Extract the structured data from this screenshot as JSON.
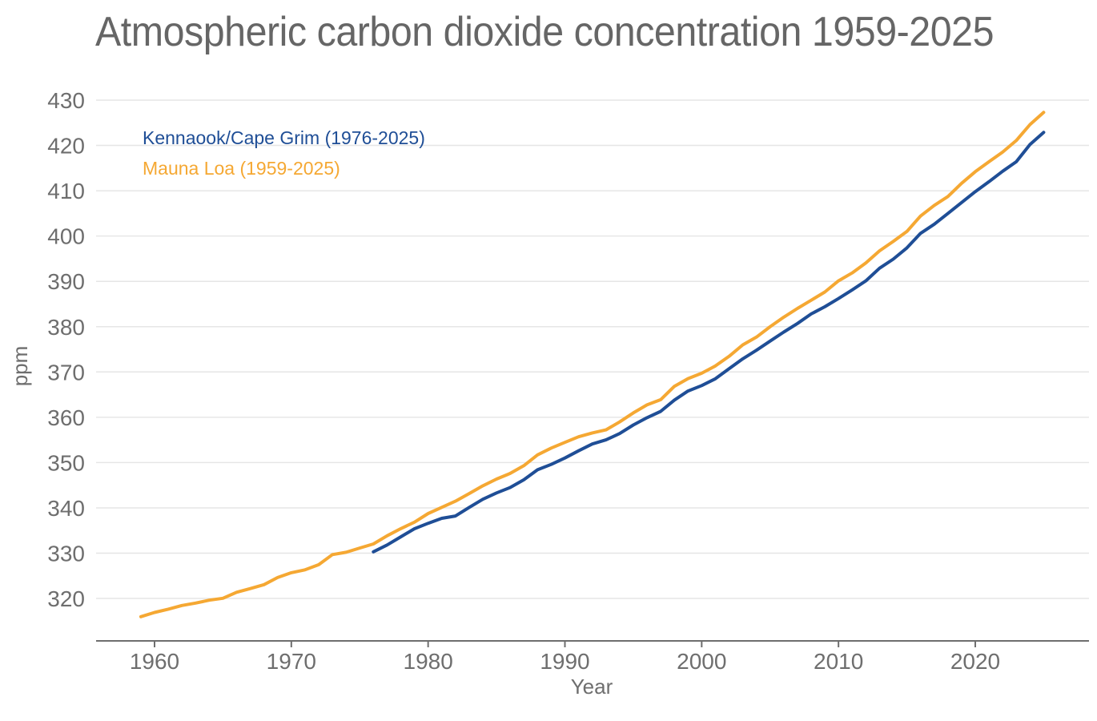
{
  "chart_data": {
    "type": "line",
    "title": "Atmospheric carbon dioxide concentration 1959-2025",
    "xlabel": "Year",
    "ylabel": "ppm",
    "xlim": [
      1956,
      2028
    ],
    "ylim": [
      311.5,
      430
    ],
    "x_ticks": [
      1960,
      1970,
      1980,
      1990,
      2000,
      2010,
      2020
    ],
    "y_ticks": [
      320,
      330,
      340,
      350,
      360,
      370,
      380,
      390,
      400,
      410,
      420,
      430
    ],
    "grid": "horizontal",
    "legend_placement": "top-left",
    "series": [
      {
        "name": "Kennaook/Cape Grim (1976-2025)",
        "color": "#1f4e96",
        "x": [
          1976,
          1977,
          1978,
          1979,
          1980,
          1981,
          1982,
          1983,
          1984,
          1985,
          1986,
          1987,
          1988,
          1989,
          1990,
          1991,
          1992,
          1993,
          1994,
          1995,
          1996,
          1997,
          1998,
          1999,
          2000,
          2001,
          2002,
          2003,
          2004,
          2005,
          2006,
          2007,
          2008,
          2009,
          2010,
          2011,
          2012,
          2013,
          2014,
          2015,
          2016,
          2017,
          2018,
          2019,
          2020,
          2021,
          2022,
          2023,
          2024,
          2025
        ],
        "values": [
          330.3,
          331.8,
          333.6,
          335.4,
          336.6,
          337.7,
          338.2,
          340.1,
          341.9,
          343.3,
          344.5,
          346.2,
          348.4,
          349.6,
          351.0,
          352.6,
          354.1,
          355.0,
          356.4,
          358.3,
          359.9,
          361.3,
          363.8,
          365.8,
          367.0,
          368.5,
          370.7,
          372.9,
          374.8,
          376.8,
          378.8,
          380.7,
          382.8,
          384.4,
          386.2,
          388.1,
          390.1,
          392.9,
          394.9,
          397.4,
          400.6,
          402.6,
          405.0,
          407.4,
          409.8,
          412.0,
          414.3,
          416.4,
          420.2,
          422.9
        ]
      },
      {
        "name": "Mauna Loa (1959-2025)",
        "color": "#f5a833",
        "x": [
          1959,
          1960,
          1961,
          1962,
          1963,
          1964,
          1965,
          1966,
          1967,
          1968,
          1969,
          1970,
          1971,
          1972,
          1973,
          1974,
          1975,
          1976,
          1977,
          1978,
          1979,
          1980,
          1981,
          1982,
          1983,
          1984,
          1985,
          1986,
          1987,
          1988,
          1989,
          1990,
          1991,
          1992,
          1993,
          1994,
          1995,
          1996,
          1997,
          1998,
          1999,
          2000,
          2001,
          2002,
          2003,
          2004,
          2005,
          2006,
          2007,
          2008,
          2009,
          2010,
          2011,
          2012,
          2013,
          2014,
          2015,
          2016,
          2017,
          2018,
          2019,
          2020,
          2021,
          2022,
          2023,
          2024,
          2025
        ],
        "values": [
          315.98,
          316.91,
          317.64,
          318.45,
          318.99,
          319.62,
          320.04,
          321.37,
          322.18,
          323.05,
          324.62,
          325.68,
          326.32,
          327.46,
          329.68,
          330.19,
          331.13,
          332.03,
          333.84,
          335.41,
          336.84,
          338.76,
          340.12,
          341.48,
          343.15,
          344.87,
          346.35,
          347.61,
          349.31,
          351.69,
          353.2,
          354.45,
          355.7,
          356.54,
          357.21,
          358.96,
          360.97,
          362.74,
          363.88,
          366.84,
          368.54,
          369.71,
          371.32,
          373.45,
          375.98,
          377.7,
          379.98,
          382.09,
          384.02,
          385.83,
          387.64,
          390.1,
          391.85,
          394.06,
          396.74,
          398.81,
          401.01,
          404.41,
          406.76,
          408.72,
          411.65,
          414.21,
          416.41,
          418.53,
          421.08,
          424.61,
          427.3
        ]
      }
    ]
  }
}
